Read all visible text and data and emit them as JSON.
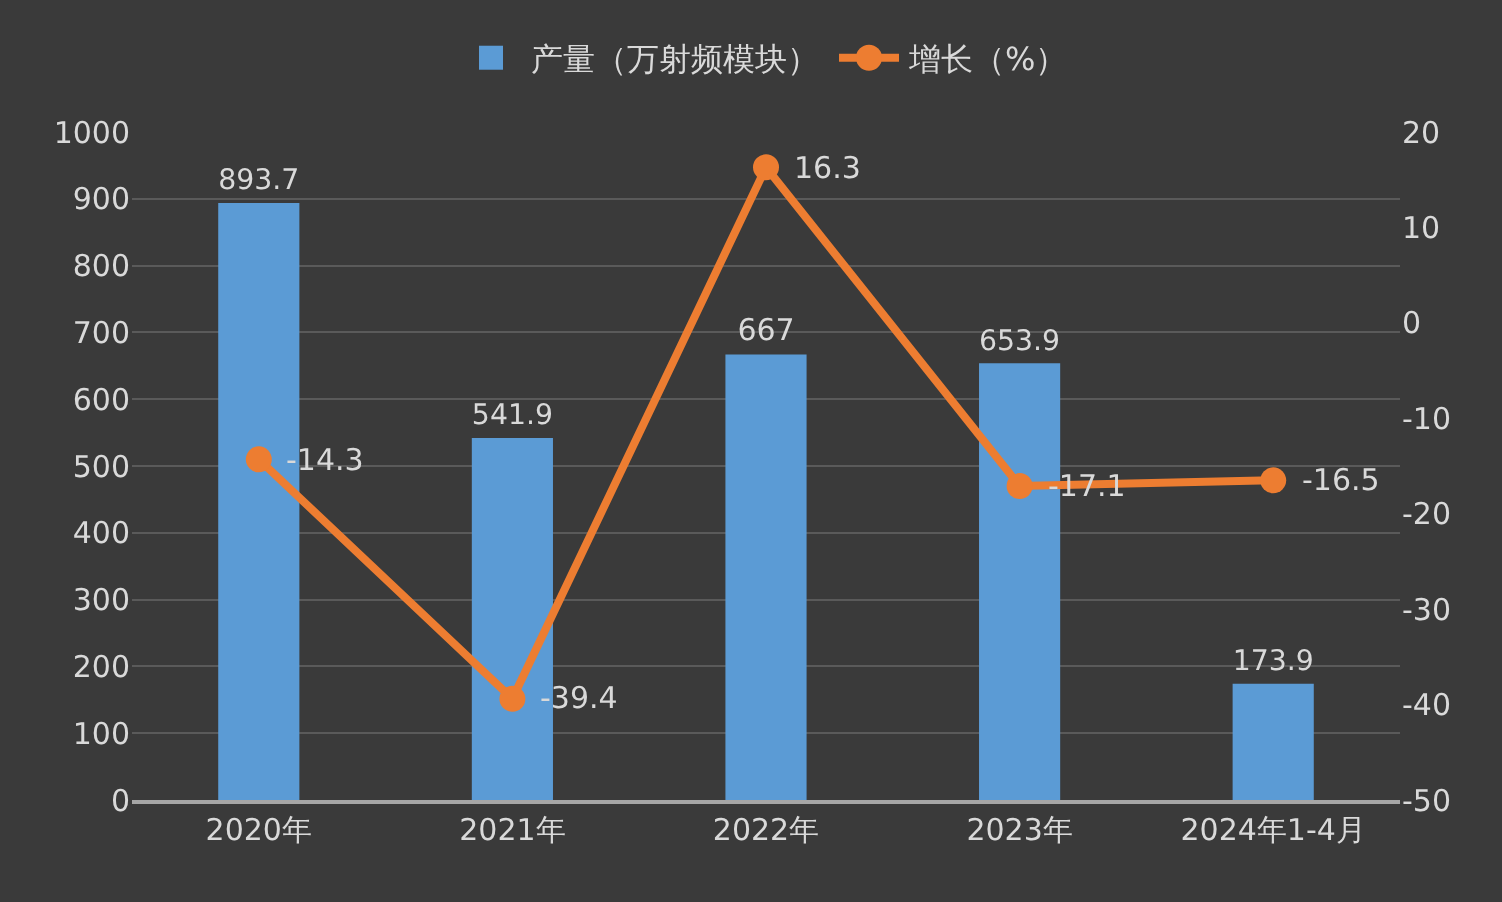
{
  "chart_data": {
    "type": "bar",
    "categories": [
      "2020年",
      "2021年",
      "2022年",
      "2023年",
      "2024年1-4月"
    ],
    "series": [
      {
        "name": "产量（万射频模块）",
        "color": "#5b9bd5",
        "values": [
          893.7,
          541.9,
          667,
          653.9,
          173.9
        ]
      },
      {
        "name": "增长（%）",
        "type": "line",
        "axis": "y2",
        "color": "#ed7d31",
        "marker": "circle",
        "values": [
          -14.3,
          -39.4,
          16.3,
          -17.1,
          -16.5
        ]
      }
    ],
    "ylim": [
      0,
      1000
    ],
    "yticks": [
      0,
      100,
      200,
      300,
      400,
      500,
      600,
      700,
      800,
      900,
      1000
    ],
    "y2lim": [
      -50,
      20
    ],
    "y2ticks": [
      -50,
      -40,
      -30,
      -20,
      -10,
      0,
      10,
      20
    ],
    "grid": "y",
    "legend": "top",
    "data_labels": true
  }
}
